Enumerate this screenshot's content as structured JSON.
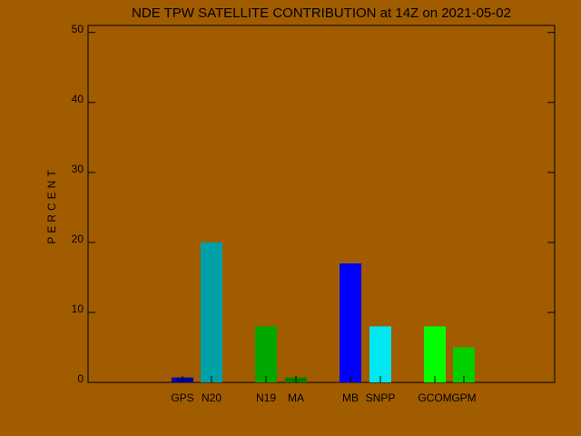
{
  "chart_data": {
    "type": "bar",
    "title": "NDE TPW SATELLITE CONTRIBUTION at 14Z on 2021-05-02",
    "y_label": "PERCENT",
    "categories": [
      "GPS",
      "N20",
      "N19",
      "MA",
      "MB",
      "SNPP",
      "GCOM",
      "GPM"
    ],
    "values": [
      0.7,
      20,
      8,
      0.7,
      17,
      8,
      8,
      5
    ],
    "colors": [
      "#0000a0",
      "#00a0a8",
      "#00a800",
      "#008000",
      "#0000ff",
      "#00e8f0",
      "#00ff00",
      "#00d000"
    ],
    "ylim": [
      0,
      51
    ],
    "yticks": [
      0,
      10,
      20,
      30,
      40,
      50
    ]
  }
}
